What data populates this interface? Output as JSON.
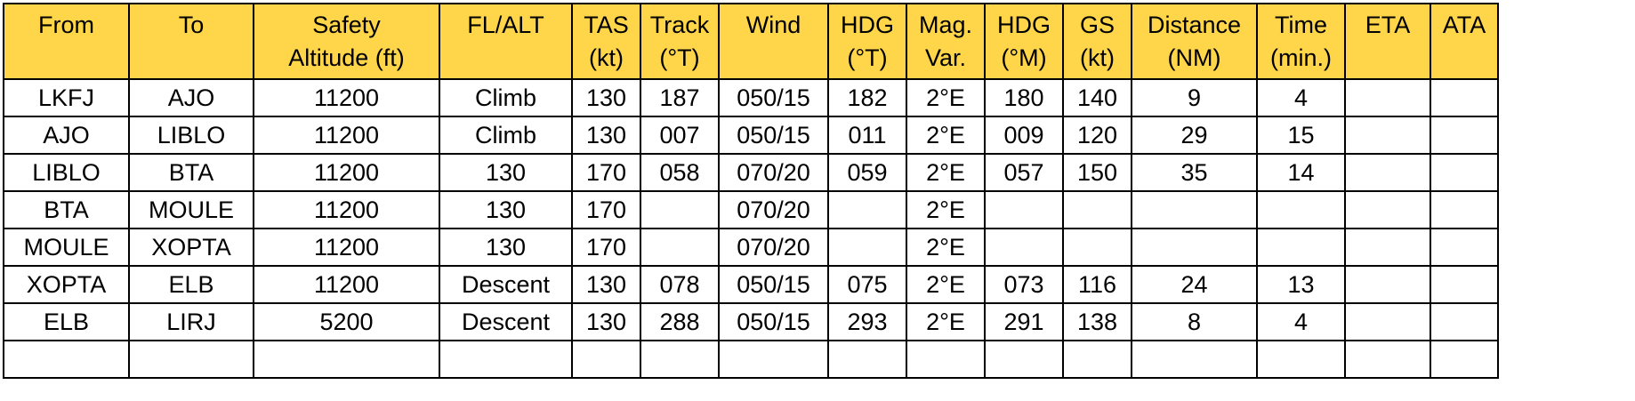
{
  "columns": [
    {
      "key": "from",
      "lines": [
        "From"
      ]
    },
    {
      "key": "to",
      "lines": [
        "To"
      ]
    },
    {
      "key": "safety_altitude",
      "lines": [
        "Safety",
        "Altitude (ft)"
      ]
    },
    {
      "key": "fl_alt",
      "lines": [
        "FL/ALT"
      ]
    },
    {
      "key": "tas",
      "lines": [
        "TAS",
        "(kt)"
      ]
    },
    {
      "key": "track",
      "lines": [
        "Track",
        "(°T)"
      ]
    },
    {
      "key": "wind",
      "lines": [
        "Wind"
      ]
    },
    {
      "key": "hdg_true",
      "lines": [
        "HDG",
        "(°T)"
      ]
    },
    {
      "key": "mag_var",
      "lines": [
        "Mag.",
        "Var."
      ]
    },
    {
      "key": "hdg_mag",
      "lines": [
        "HDG",
        "(°M)"
      ]
    },
    {
      "key": "gs",
      "lines": [
        "GS",
        "(kt)"
      ]
    },
    {
      "key": "distance",
      "lines": [
        "Distance",
        "(NM)"
      ]
    },
    {
      "key": "time",
      "lines": [
        "Time",
        "(min.)"
      ]
    },
    {
      "key": "eta",
      "lines": [
        "ETA"
      ]
    },
    {
      "key": "ata",
      "lines": [
        "ATA"
      ]
    }
  ],
  "rows": [
    [
      "LKFJ",
      "AJO",
      "11200",
      "Climb",
      "130",
      "187",
      "050/15",
      "182",
      "2°E",
      "180",
      "140",
      "9",
      "4",
      "",
      ""
    ],
    [
      "AJO",
      "LIBLO",
      "11200",
      "Climb",
      "130",
      "007",
      "050/15",
      "011",
      "2°E",
      "009",
      "120",
      "29",
      "15",
      "",
      ""
    ],
    [
      "LIBLO",
      "BTA",
      "11200",
      "130",
      "170",
      "058",
      "070/20",
      "059",
      "2°E",
      "057",
      "150",
      "35",
      "14",
      "",
      ""
    ],
    [
      "BTA",
      "MOULE",
      "11200",
      "130",
      "170",
      "",
      "070/20",
      "",
      "2°E",
      "",
      "",
      "",
      "",
      "",
      ""
    ],
    [
      "MOULE",
      "XOPTA",
      "11200",
      "130",
      "170",
      "",
      "070/20",
      "",
      "2°E",
      "",
      "",
      "",
      "",
      "",
      ""
    ],
    [
      "XOPTA",
      "ELB",
      "11200",
      "Descent",
      "130",
      "078",
      "050/15",
      "075",
      "2°E",
      "073",
      "116",
      "24",
      "13",
      "",
      ""
    ],
    [
      "ELB",
      "LIRJ",
      "5200",
      "Descent",
      "130",
      "288",
      "050/15",
      "293",
      "2°E",
      "291",
      "138",
      "8",
      "4",
      "",
      ""
    ],
    [
      "",
      "",
      "",
      "",
      "",
      "",
      "",
      "",
      "",
      "",
      "",
      "",
      "",
      "",
      ""
    ]
  ],
  "colors": {
    "header_background": "#ffd54a",
    "grid_lines": "#000000"
  }
}
